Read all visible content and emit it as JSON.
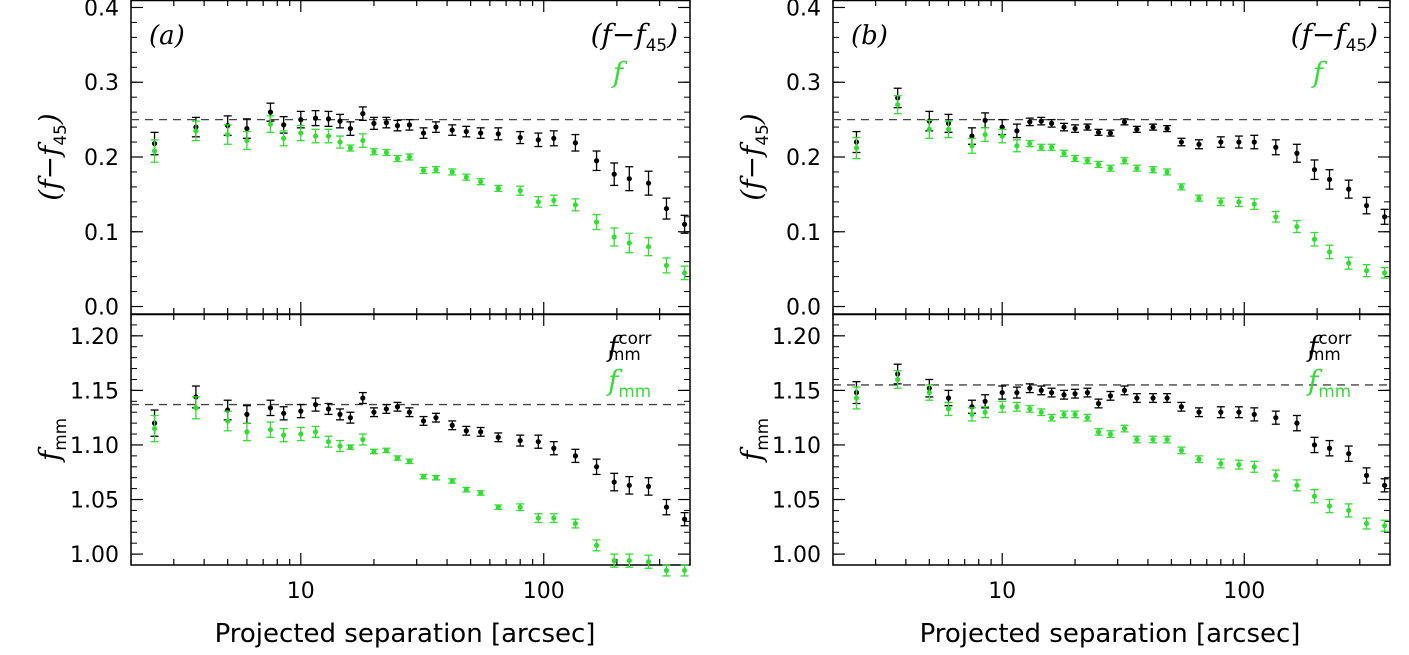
{
  "xlabel": "Projected separation [arcsec]",
  "colors": {
    "black": "#000000",
    "green": "#33dd33"
  },
  "chart_data": [
    {
      "type": "scatter",
      "panel_label": "(a)",
      "x_scale": "log",
      "xlim": [
        2.0,
        400
      ],
      "x_ticks": [
        10,
        100
      ],
      "top": {
        "ylabel": "(f−f45)",
        "ylim": [
          -0.01,
          0.41
        ],
        "y_ticks": [
          "0.0",
          "0.1",
          "0.2",
          "0.3",
          "0.4"
        ],
        "reference_line": 0.25,
        "legend": [
          "(f−f45)",
          "f"
        ],
        "series": [
          {
            "name": "(f−f45)",
            "color": "black",
            "x": [
              2.5,
              3.7,
              5.0,
              6.0,
              7.5,
              8.5,
              10.0,
              11.5,
              13.0,
              14.5,
              16.0,
              18.0,
              20.0,
              22.5,
              25.0,
              28.0,
              32.0,
              36.0,
              42.0,
              48.0,
              55.0,
              65.0,
              80.0,
              95.0,
              110.0,
              135.0,
              165.0,
              195.0,
              225.0,
              270.0,
              320.0,
              380.0
            ],
            "y": [
              0.218,
              0.24,
              0.242,
              0.238,
              0.26,
              0.243,
              0.25,
              0.252,
              0.251,
              0.248,
              0.238,
              0.258,
              0.245,
              0.246,
              0.242,
              0.243,
              0.232,
              0.24,
              0.236,
              0.234,
              0.232,
              0.231,
              0.226,
              0.223,
              0.225,
              0.219,
              0.195,
              0.177,
              0.171,
              0.165,
              0.131,
              0.11
            ],
            "err": [
              0.015,
              0.013,
              0.013,
              0.013,
              0.012,
              0.011,
              0.011,
              0.01,
              0.01,
              0.009,
              0.009,
              0.009,
              0.008,
              0.007,
              0.007,
              0.007,
              0.007,
              0.007,
              0.007,
              0.007,
              0.007,
              0.008,
              0.008,
              0.009,
              0.01,
              0.011,
              0.013,
              0.015,
              0.016,
              0.016,
              0.014,
              0.012
            ]
          },
          {
            "name": "f",
            "color": "green",
            "x": [
              2.5,
              3.7,
              5.0,
              6.0,
              7.5,
              8.5,
              10.0,
              11.5,
              13.0,
              14.5,
              16.0,
              18.0,
              20.0,
              22.5,
              25.0,
              28.0,
              32.0,
              36.0,
              42.0,
              48.0,
              55.0,
              65.0,
              80.0,
              95.0,
              110.0,
              135.0,
              165.0,
              195.0,
              225.0,
              270.0,
              320.0,
              380.0
            ],
            "y": [
              0.208,
              0.235,
              0.23,
              0.222,
              0.244,
              0.225,
              0.232,
              0.228,
              0.228,
              0.22,
              0.212,
              0.222,
              0.207,
              0.206,
              0.198,
              0.2,
              0.182,
              0.183,
              0.18,
              0.173,
              0.167,
              0.158,
              0.155,
              0.14,
              0.142,
              0.136,
              0.113,
              0.093,
              0.085,
              0.08,
              0.055,
              0.045
            ],
            "err": [
              0.015,
              0.013,
              0.013,
              0.012,
              0.011,
              0.01,
              0.01,
              0.009,
              0.009,
              0.008,
              0.004,
              0.009,
              0.004,
              0.004,
              0.004,
              0.004,
              0.004,
              0.004,
              0.004,
              0.004,
              0.004,
              0.004,
              0.006,
              0.007,
              0.007,
              0.008,
              0.01,
              0.012,
              0.013,
              0.012,
              0.01,
              0.009
            ]
          }
        ]
      },
      "bottom": {
        "ylabel": "fmm",
        "ylim": [
          0.99,
          1.22
        ],
        "y_ticks": [
          "1.00",
          "1.05",
          "1.10",
          "1.15",
          "1.20"
        ],
        "reference_line": 1.137,
        "legend": [
          "fmm corr",
          "fmm"
        ],
        "series": [
          {
            "name": "fmm corr",
            "color": "black",
            "x": [
              2.5,
              3.7,
              5.0,
              6.0,
              7.5,
              8.5,
              10.0,
              11.5,
              13.0,
              14.5,
              16.0,
              18.0,
              20.0,
              22.5,
              25.0,
              28.0,
              32.0,
              36.0,
              42.0,
              48.0,
              55.0,
              65.0,
              80.0,
              95.0,
              110.0,
              135.0,
              165.0,
              195.0,
              225.0,
              270.0,
              320.0,
              380.0
            ],
            "y": [
              1.12,
              1.144,
              1.132,
              1.128,
              1.134,
              1.129,
              1.131,
              1.137,
              1.133,
              1.128,
              1.125,
              1.143,
              1.13,
              1.133,
              1.135,
              1.13,
              1.122,
              1.125,
              1.118,
              1.113,
              1.112,
              1.107,
              1.104,
              1.103,
              1.097,
              1.09,
              1.08,
              1.066,
              1.063,
              1.062,
              1.043,
              1.032
            ],
            "err": [
              0.012,
              0.01,
              0.009,
              0.008,
              0.007,
              0.006,
              0.006,
              0.006,
              0.005,
              0.005,
              0.005,
              0.005,
              0.004,
              0.004,
              0.004,
              0.004,
              0.004,
              0.004,
              0.004,
              0.004,
              0.004,
              0.004,
              0.005,
              0.006,
              0.006,
              0.006,
              0.007,
              0.008,
              0.008,
              0.008,
              0.007,
              0.006
            ]
          },
          {
            "name": "fmm",
            "color": "green",
            "x": [
              2.5,
              3.7,
              5.0,
              6.0,
              7.5,
              8.5,
              10.0,
              11.5,
              13.0,
              14.5,
              16.0,
              18.0,
              20.0,
              22.5,
              25.0,
              28.0,
              32.0,
              36.0,
              42.0,
              48.0,
              55.0,
              65.0,
              80.0,
              95.0,
              110.0,
              135.0,
              165.0,
              195.0,
              225.0,
              270.0,
              320.0,
              380.0
            ],
            "y": [
              1.115,
              1.134,
              1.122,
              1.112,
              1.114,
              1.109,
              1.11,
              1.112,
              1.103,
              1.099,
              1.098,
              1.105,
              1.094,
              1.095,
              1.088,
              1.085,
              1.071,
              1.07,
              1.067,
              1.059,
              1.056,
              1.043,
              1.043,
              1.033,
              1.033,
              1.028,
              1.008,
              0.994,
              0.994,
              0.993,
              0.985,
              0.985
            ],
            "err": [
              0.012,
              0.01,
              0.009,
              0.008,
              0.007,
              0.006,
              0.006,
              0.005,
              0.005,
              0.005,
              0.002,
              0.005,
              0.002,
              0.002,
              0.002,
              0.002,
              0.002,
              0.002,
              0.002,
              0.002,
              0.002,
              0.002,
              0.003,
              0.004,
              0.004,
              0.004,
              0.005,
              0.006,
              0.006,
              0.006,
              0.005,
              0.005
            ]
          }
        ]
      }
    },
    {
      "type": "scatter",
      "panel_label": "(b)",
      "x_scale": "log",
      "xlim": [
        2.0,
        400
      ],
      "x_ticks": [
        10,
        100
      ],
      "top": {
        "ylabel": "(f−f45)",
        "ylim": [
          -0.01,
          0.41
        ],
        "y_ticks": [
          "0.0",
          "0.1",
          "0.2",
          "0.3",
          "0.4"
        ],
        "reference_line": 0.25,
        "legend": [
          "(f−f45)",
          "f"
        ],
        "series": [
          {
            "name": "(f−f45)",
            "color": "black",
            "x": [
              2.5,
              3.7,
              5.0,
              6.0,
              7.5,
              8.5,
              10.0,
              11.5,
              13.0,
              14.5,
              16.0,
              18.0,
              20.0,
              22.5,
              25.0,
              28.0,
              32.0,
              36.0,
              42.0,
              48.0,
              55.0,
              65.0,
              80.0,
              95.0,
              110.0,
              135.0,
              165.0,
              195.0,
              225.0,
              270.0,
              320.0,
              380.0
            ],
            "y": [
              0.22,
              0.279,
              0.248,
              0.245,
              0.228,
              0.249,
              0.24,
              0.235,
              0.247,
              0.248,
              0.245,
              0.24,
              0.238,
              0.24,
              0.233,
              0.232,
              0.247,
              0.237,
              0.24,
              0.238,
              0.22,
              0.217,
              0.22,
              0.22,
              0.22,
              0.213,
              0.205,
              0.183,
              0.17,
              0.157,
              0.135,
              0.12
            ],
            "err": [
              0.014,
              0.013,
              0.013,
              0.012,
              0.011,
              0.01,
              0.01,
              0.009,
              0.005,
              0.005,
              0.005,
              0.005,
              0.005,
              0.004,
              0.004,
              0.004,
              0.004,
              0.004,
              0.004,
              0.004,
              0.005,
              0.006,
              0.007,
              0.008,
              0.009,
              0.01,
              0.012,
              0.013,
              0.013,
              0.012,
              0.011,
              0.01
            ]
          },
          {
            "name": "f",
            "color": "green",
            "x": [
              2.5,
              3.7,
              5.0,
              6.0,
              7.5,
              8.5,
              10.0,
              11.5,
              13.0,
              14.5,
              16.0,
              18.0,
              20.0,
              22.5,
              25.0,
              28.0,
              32.0,
              36.0,
              42.0,
              48.0,
              55.0,
              65.0,
              80.0,
              95.0,
              110.0,
              135.0,
              165.0,
              195.0,
              225.0,
              270.0,
              320.0,
              380.0
            ],
            "y": [
              0.212,
              0.27,
              0.237,
              0.237,
              0.215,
              0.23,
              0.228,
              0.215,
              0.218,
              0.213,
              0.213,
              0.205,
              0.198,
              0.195,
              0.19,
              0.185,
              0.195,
              0.185,
              0.183,
              0.18,
              0.16,
              0.145,
              0.14,
              0.14,
              0.137,
              0.12,
              0.107,
              0.09,
              0.073,
              0.058,
              0.048,
              0.045
            ],
            "err": [
              0.014,
              0.012,
              0.012,
              0.011,
              0.01,
              0.009,
              0.009,
              0.008,
              0.004,
              0.004,
              0.004,
              0.004,
              0.004,
              0.004,
              0.004,
              0.004,
              0.004,
              0.004,
              0.004,
              0.004,
              0.004,
              0.004,
              0.005,
              0.006,
              0.007,
              0.007,
              0.008,
              0.009,
              0.009,
              0.008,
              0.008,
              0.007
            ]
          }
        ]
      },
      "bottom": {
        "ylabel": "fmm",
        "ylim": [
          0.99,
          1.22
        ],
        "y_ticks": [
          "1.00",
          "1.05",
          "1.10",
          "1.15",
          "1.20"
        ],
        "reference_line": 1.155,
        "legend": [
          "fmm corr",
          "fmm"
        ],
        "series": [
          {
            "name": "fmm corr",
            "color": "black",
            "x": [
              2.5,
              3.7,
              5.0,
              6.0,
              7.5,
              8.5,
              10.0,
              11.5,
              13.0,
              14.5,
              16.0,
              18.0,
              20.0,
              22.5,
              25.0,
              28.0,
              32.0,
              36.0,
              42.0,
              48.0,
              55.0,
              65.0,
              80.0,
              95.0,
              110.0,
              135.0,
              165.0,
              195.0,
              225.0,
              270.0,
              320.0,
              380.0
            ],
            "y": [
              1.148,
              1.165,
              1.152,
              1.143,
              1.135,
              1.14,
              1.148,
              1.148,
              1.152,
              1.15,
              1.148,
              1.146,
              1.147,
              1.148,
              1.138,
              1.145,
              1.15,
              1.143,
              1.143,
              1.143,
              1.135,
              1.13,
              1.13,
              1.13,
              1.128,
              1.125,
              1.12,
              1.1,
              1.097,
              1.092,
              1.072,
              1.063
            ],
            "err": [
              0.01,
              0.009,
              0.008,
              0.007,
              0.006,
              0.006,
              0.006,
              0.005,
              0.004,
              0.004,
              0.004,
              0.004,
              0.004,
              0.004,
              0.004,
              0.004,
              0.004,
              0.004,
              0.004,
              0.004,
              0.004,
              0.004,
              0.005,
              0.005,
              0.006,
              0.006,
              0.007,
              0.007,
              0.007,
              0.007,
              0.007,
              0.006
            ]
          },
          {
            "name": "fmm",
            "color": "green",
            "x": [
              2.5,
              3.7,
              5.0,
              6.0,
              7.5,
              8.5,
              10.0,
              11.5,
              13.0,
              14.5,
              16.0,
              18.0,
              20.0,
              22.5,
              25.0,
              28.0,
              32.0,
              36.0,
              42.0,
              48.0,
              55.0,
              65.0,
              80.0,
              95.0,
              110.0,
              135.0,
              165.0,
              195.0,
              225.0,
              270.0,
              320.0,
              380.0
            ],
            "y": [
              1.143,
              1.16,
              1.148,
              1.133,
              1.128,
              1.13,
              1.135,
              1.135,
              1.133,
              1.13,
              1.125,
              1.128,
              1.128,
              1.125,
              1.112,
              1.11,
              1.115,
              1.105,
              1.105,
              1.105,
              1.095,
              1.087,
              1.083,
              1.082,
              1.08,
              1.072,
              1.063,
              1.053,
              1.044,
              1.04,
              1.028,
              1.026
            ],
            "err": [
              0.01,
              0.008,
              0.007,
              0.006,
              0.006,
              0.005,
              0.005,
              0.004,
              0.003,
              0.003,
              0.003,
              0.003,
              0.003,
              0.003,
              0.003,
              0.003,
              0.003,
              0.003,
              0.003,
              0.003,
              0.003,
              0.003,
              0.004,
              0.004,
              0.005,
              0.005,
              0.005,
              0.006,
              0.006,
              0.006,
              0.005,
              0.005
            ]
          }
        ]
      }
    }
  ]
}
